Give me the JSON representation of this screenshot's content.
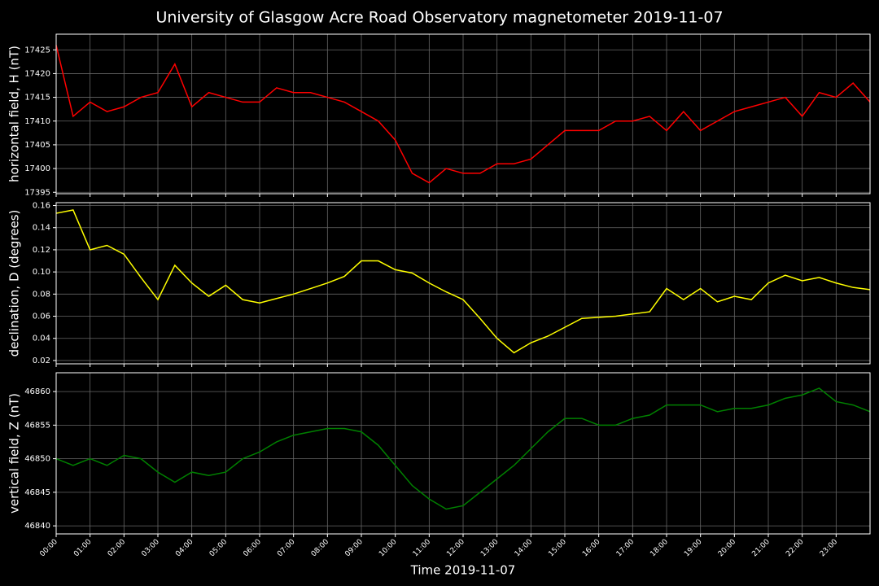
{
  "chart_data": [
    {
      "type": "line",
      "title": "University of Glasgow Acre Road Observatory magnetometer 2019-11-07",
      "ylabel": "horizontal field, H (nT)",
      "color": "#ff0000",
      "grid": true,
      "x": [
        0,
        0.5,
        1,
        1.5,
        2,
        2.5,
        3,
        3.5,
        4,
        4.5,
        5,
        5.5,
        6,
        6.5,
        7,
        7.5,
        8,
        8.5,
        9,
        9.5,
        10,
        10.5,
        11,
        11.5,
        12,
        12.5,
        13,
        13.5,
        14,
        14.5,
        15,
        15.5,
        16,
        16.5,
        17,
        17.5,
        18,
        18.5,
        19,
        19.5,
        20,
        20.5,
        21,
        21.5,
        22,
        22.5,
        23,
        23.5,
        24
      ],
      "values": [
        17426,
        17411,
        17414,
        17412,
        17413,
        17415,
        17416,
        17422,
        17413,
        17416,
        17415,
        17414,
        17414,
        17417,
        17416,
        17416,
        17415,
        17414,
        17412,
        17410,
        17406,
        17399,
        17397,
        17400,
        17399,
        17399,
        17401,
        17401,
        17402,
        17405,
        17408,
        17408,
        17408,
        17410,
        17410,
        17411,
        17408,
        17412,
        17408,
        17410,
        17412,
        17413,
        17414,
        17415,
        17411,
        17416,
        17415,
        17418,
        17414
      ],
      "xlim": [
        0,
        24
      ],
      "xticks": [
        0,
        1,
        2,
        3,
        4,
        5,
        6,
        7,
        8,
        9,
        10,
        11,
        12,
        13,
        14,
        15,
        16,
        17,
        18,
        19,
        20,
        21,
        22,
        23
      ],
      "ylim": [
        17394.7,
        17428.3
      ],
      "yticks": [
        17395,
        17400,
        17405,
        17410,
        17415,
        17420,
        17425
      ]
    },
    {
      "type": "line",
      "ylabel": "declination, D (degrees)",
      "color": "#ffff00",
      "grid": true,
      "x": [
        0,
        0.5,
        1,
        1.5,
        2,
        2.5,
        3,
        3.5,
        4,
        4.5,
        5,
        5.5,
        6,
        6.5,
        7,
        7.5,
        8,
        8.5,
        9,
        9.5,
        10,
        10.5,
        11,
        11.5,
        12,
        12.5,
        13,
        13.5,
        14,
        14.5,
        15,
        15.5,
        16,
        16.5,
        17,
        17.5,
        18,
        18.5,
        19,
        19.5,
        20,
        20.5,
        21,
        21.5,
        22,
        22.5,
        23,
        23.5,
        24
      ],
      "values": [
        0.153,
        0.156,
        0.12,
        0.124,
        0.116,
        0.095,
        0.075,
        0.106,
        0.09,
        0.078,
        0.088,
        0.075,
        0.072,
        0.076,
        0.08,
        0.085,
        0.09,
        0.096,
        0.11,
        0.11,
        0.102,
        0.099,
        0.09,
        0.082,
        0.075,
        0.058,
        0.04,
        0.027,
        0.036,
        0.042,
        0.05,
        0.058,
        0.059,
        0.06,
        0.062,
        0.064,
        0.085,
        0.075,
        0.085,
        0.073,
        0.078,
        0.075,
        0.09,
        0.097,
        0.092,
        0.095,
        0.09,
        0.086,
        0.084
      ],
      "xlim": [
        0,
        24
      ],
      "xticks": [
        0,
        1,
        2,
        3,
        4,
        5,
        6,
        7,
        8,
        9,
        10,
        11,
        12,
        13,
        14,
        15,
        16,
        17,
        18,
        19,
        20,
        21,
        22,
        23
      ],
      "ylim": [
        0.017,
        0.1626
      ],
      "yticks": [
        0.02,
        0.04,
        0.06,
        0.08,
        {
          "value": 0.1,
          "label": "0.10"
        },
        0.12,
        0.14,
        0.16
      ]
    },
    {
      "type": "line",
      "ylabel": "vertical field, Z (nT)",
      "xlabel": "Time 2019-11-07",
      "color": "#008000",
      "grid": true,
      "x": [
        0,
        0.5,
        1,
        1.5,
        2,
        2.5,
        3,
        3.5,
        4,
        4.5,
        5,
        5.5,
        6,
        6.5,
        7,
        7.5,
        8,
        8.5,
        9,
        9.5,
        10,
        10.5,
        11,
        11.5,
        12,
        12.5,
        13,
        13.5,
        14,
        14.5,
        15,
        15.5,
        16,
        16.5,
        17,
        17.5,
        18,
        18.5,
        19,
        19.5,
        20,
        20.5,
        21,
        21.5,
        22,
        22.5,
        23,
        23.5,
        24
      ],
      "values": [
        46850,
        46849,
        46850,
        46849,
        46850.5,
        46850,
        46848,
        46846.5,
        46848,
        46847.5,
        46848,
        46850,
        46851,
        46852.5,
        46853.5,
        46854,
        46854.5,
        46854.5,
        46854,
        46852,
        46849,
        46846,
        46844,
        46842.5,
        46843,
        46845,
        46847,
        46849,
        46851.5,
        46854,
        46856,
        46856,
        46855,
        46855,
        46856,
        46856.5,
        46858,
        46858,
        46858,
        46857,
        46857.5,
        46857.5,
        46858,
        46859,
        46859.5,
        46860.5,
        46858.5,
        46858,
        46857
      ],
      "xlim": [
        0,
        24
      ],
      "xticks": [
        {
          "value": 0,
          "label": "00:00"
        },
        {
          "value": 1,
          "label": "01:00"
        },
        {
          "value": 2,
          "label": "02:00"
        },
        {
          "value": 3,
          "label": "03:00"
        },
        {
          "value": 4,
          "label": "04:00"
        },
        {
          "value": 5,
          "label": "05:00"
        },
        {
          "value": 6,
          "label": "06:00"
        },
        {
          "value": 7,
          "label": "07:00"
        },
        {
          "value": 8,
          "label": "08:00"
        },
        {
          "value": 9,
          "label": "09:00"
        },
        {
          "value": 10,
          "label": "10:00"
        },
        {
          "value": 11,
          "label": "11:00"
        },
        {
          "value": 12,
          "label": "12:00"
        },
        {
          "value": 13,
          "label": "13:00"
        },
        {
          "value": 14,
          "label": "14:00"
        },
        {
          "value": 15,
          "label": "15:00"
        },
        {
          "value": 16,
          "label": "16:00"
        },
        {
          "value": 17,
          "label": "17:00"
        },
        {
          "value": 18,
          "label": "18:00"
        },
        {
          "value": 19,
          "label": "19:00"
        },
        {
          "value": 20,
          "label": "20:00"
        },
        {
          "value": 21,
          "label": "21:00"
        },
        {
          "value": 22,
          "label": "22:00"
        },
        {
          "value": 23,
          "label": "23:00"
        }
      ],
      "ylim": [
        46838.8,
        46862.8
      ],
      "yticks": [
        46840,
        46845,
        46850,
        46855,
        46860
      ]
    }
  ]
}
